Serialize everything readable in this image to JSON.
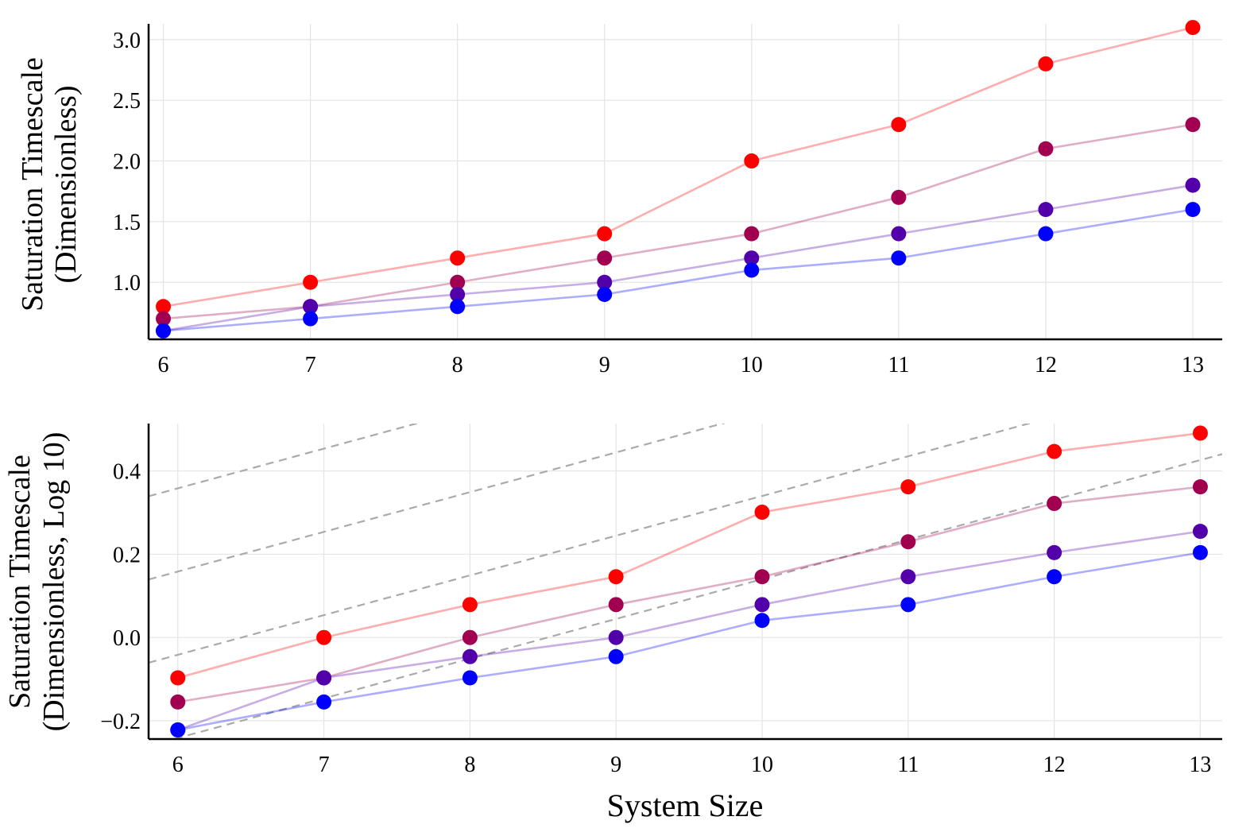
{
  "chart_data": [
    {
      "type": "line",
      "xlabel": "",
      "ylabel": [
        "Saturation Timescale",
        "(Dimensionless)"
      ],
      "x": [
        6,
        7,
        8,
        9,
        10,
        11,
        12,
        13
      ],
      "xlim": [
        5.9,
        13.2
      ],
      "ylim": [
        0.53,
        3.13
      ],
      "x_ticks": [
        "6",
        "7",
        "8",
        "9",
        "10",
        "11",
        "12",
        "13"
      ],
      "y_ticks": [
        1.0,
        1.5,
        2.0,
        2.5,
        3.0
      ],
      "y_tick_labels": [
        "1.0",
        "1.5",
        "2.0",
        "2.5",
        "3.0"
      ],
      "grid": true,
      "legend": "none",
      "series": [
        {
          "color": "#ff0000",
          "values": [
            0.8,
            1.0,
            1.2,
            1.4,
            2.0,
            2.3,
            2.8,
            3.1
          ]
        },
        {
          "color": "#a0004f",
          "values": [
            0.7,
            0.8,
            1.0,
            1.2,
            1.4,
            1.7,
            2.1,
            2.3
          ]
        },
        {
          "color": "#5200aa",
          "values": [
            0.6,
            0.8,
            0.9,
            1.0,
            1.2,
            1.4,
            1.6,
            1.8
          ]
        },
        {
          "color": "#0000ff",
          "values": [
            0.6,
            0.7,
            0.8,
            0.9,
            1.1,
            1.2,
            1.4,
            1.6
          ]
        }
      ]
    },
    {
      "type": "line",
      "xlabel": "System Size",
      "ylabel": [
        "Saturation Timescale",
        "(Dimensionless, Log 10)"
      ],
      "x": [
        6,
        7,
        8,
        9,
        10,
        11,
        12,
        13
      ],
      "xlim": [
        5.8,
        13.15
      ],
      "ylim": [
        -0.244,
        0.514
      ],
      "x_ticks": [
        "6",
        "7",
        "8",
        "9",
        "10",
        "11",
        "12",
        "13"
      ],
      "y_ticks": [
        -0.2,
        0.0,
        0.2,
        0.4
      ],
      "y_tick_labels": [
        "−0.2",
        "0.0",
        "0.2",
        "0.4"
      ],
      "grid": true,
      "legend": "none",
      "series": [
        {
          "color": "#ff0000",
          "values": [
            -0.097,
            0.0,
            0.079,
            0.146,
            0.301,
            0.362,
            0.447,
            0.491
          ]
        },
        {
          "color": "#a0004f",
          "values": [
            -0.155,
            -0.097,
            0.0,
            0.079,
            0.146,
            0.23,
            0.322,
            0.362
          ]
        },
        {
          "color": "#5200aa",
          "values": [
            -0.222,
            -0.097,
            -0.046,
            0.0,
            0.079,
            0.146,
            0.204,
            0.255
          ]
        },
        {
          "color": "#0000ff",
          "values": [
            -0.222,
            -0.155,
            -0.097,
            -0.046,
            0.041,
            0.079,
            0.146,
            0.204
          ]
        }
      ],
      "reference_lines": {
        "style": "dashed",
        "color": "#aaaaaa",
        "slope": 0.0954,
        "intercepts": [
          -0.814,
          -0.614,
          -0.414,
          -0.214,
          -0.014,
          0.186
        ]
      }
    }
  ]
}
